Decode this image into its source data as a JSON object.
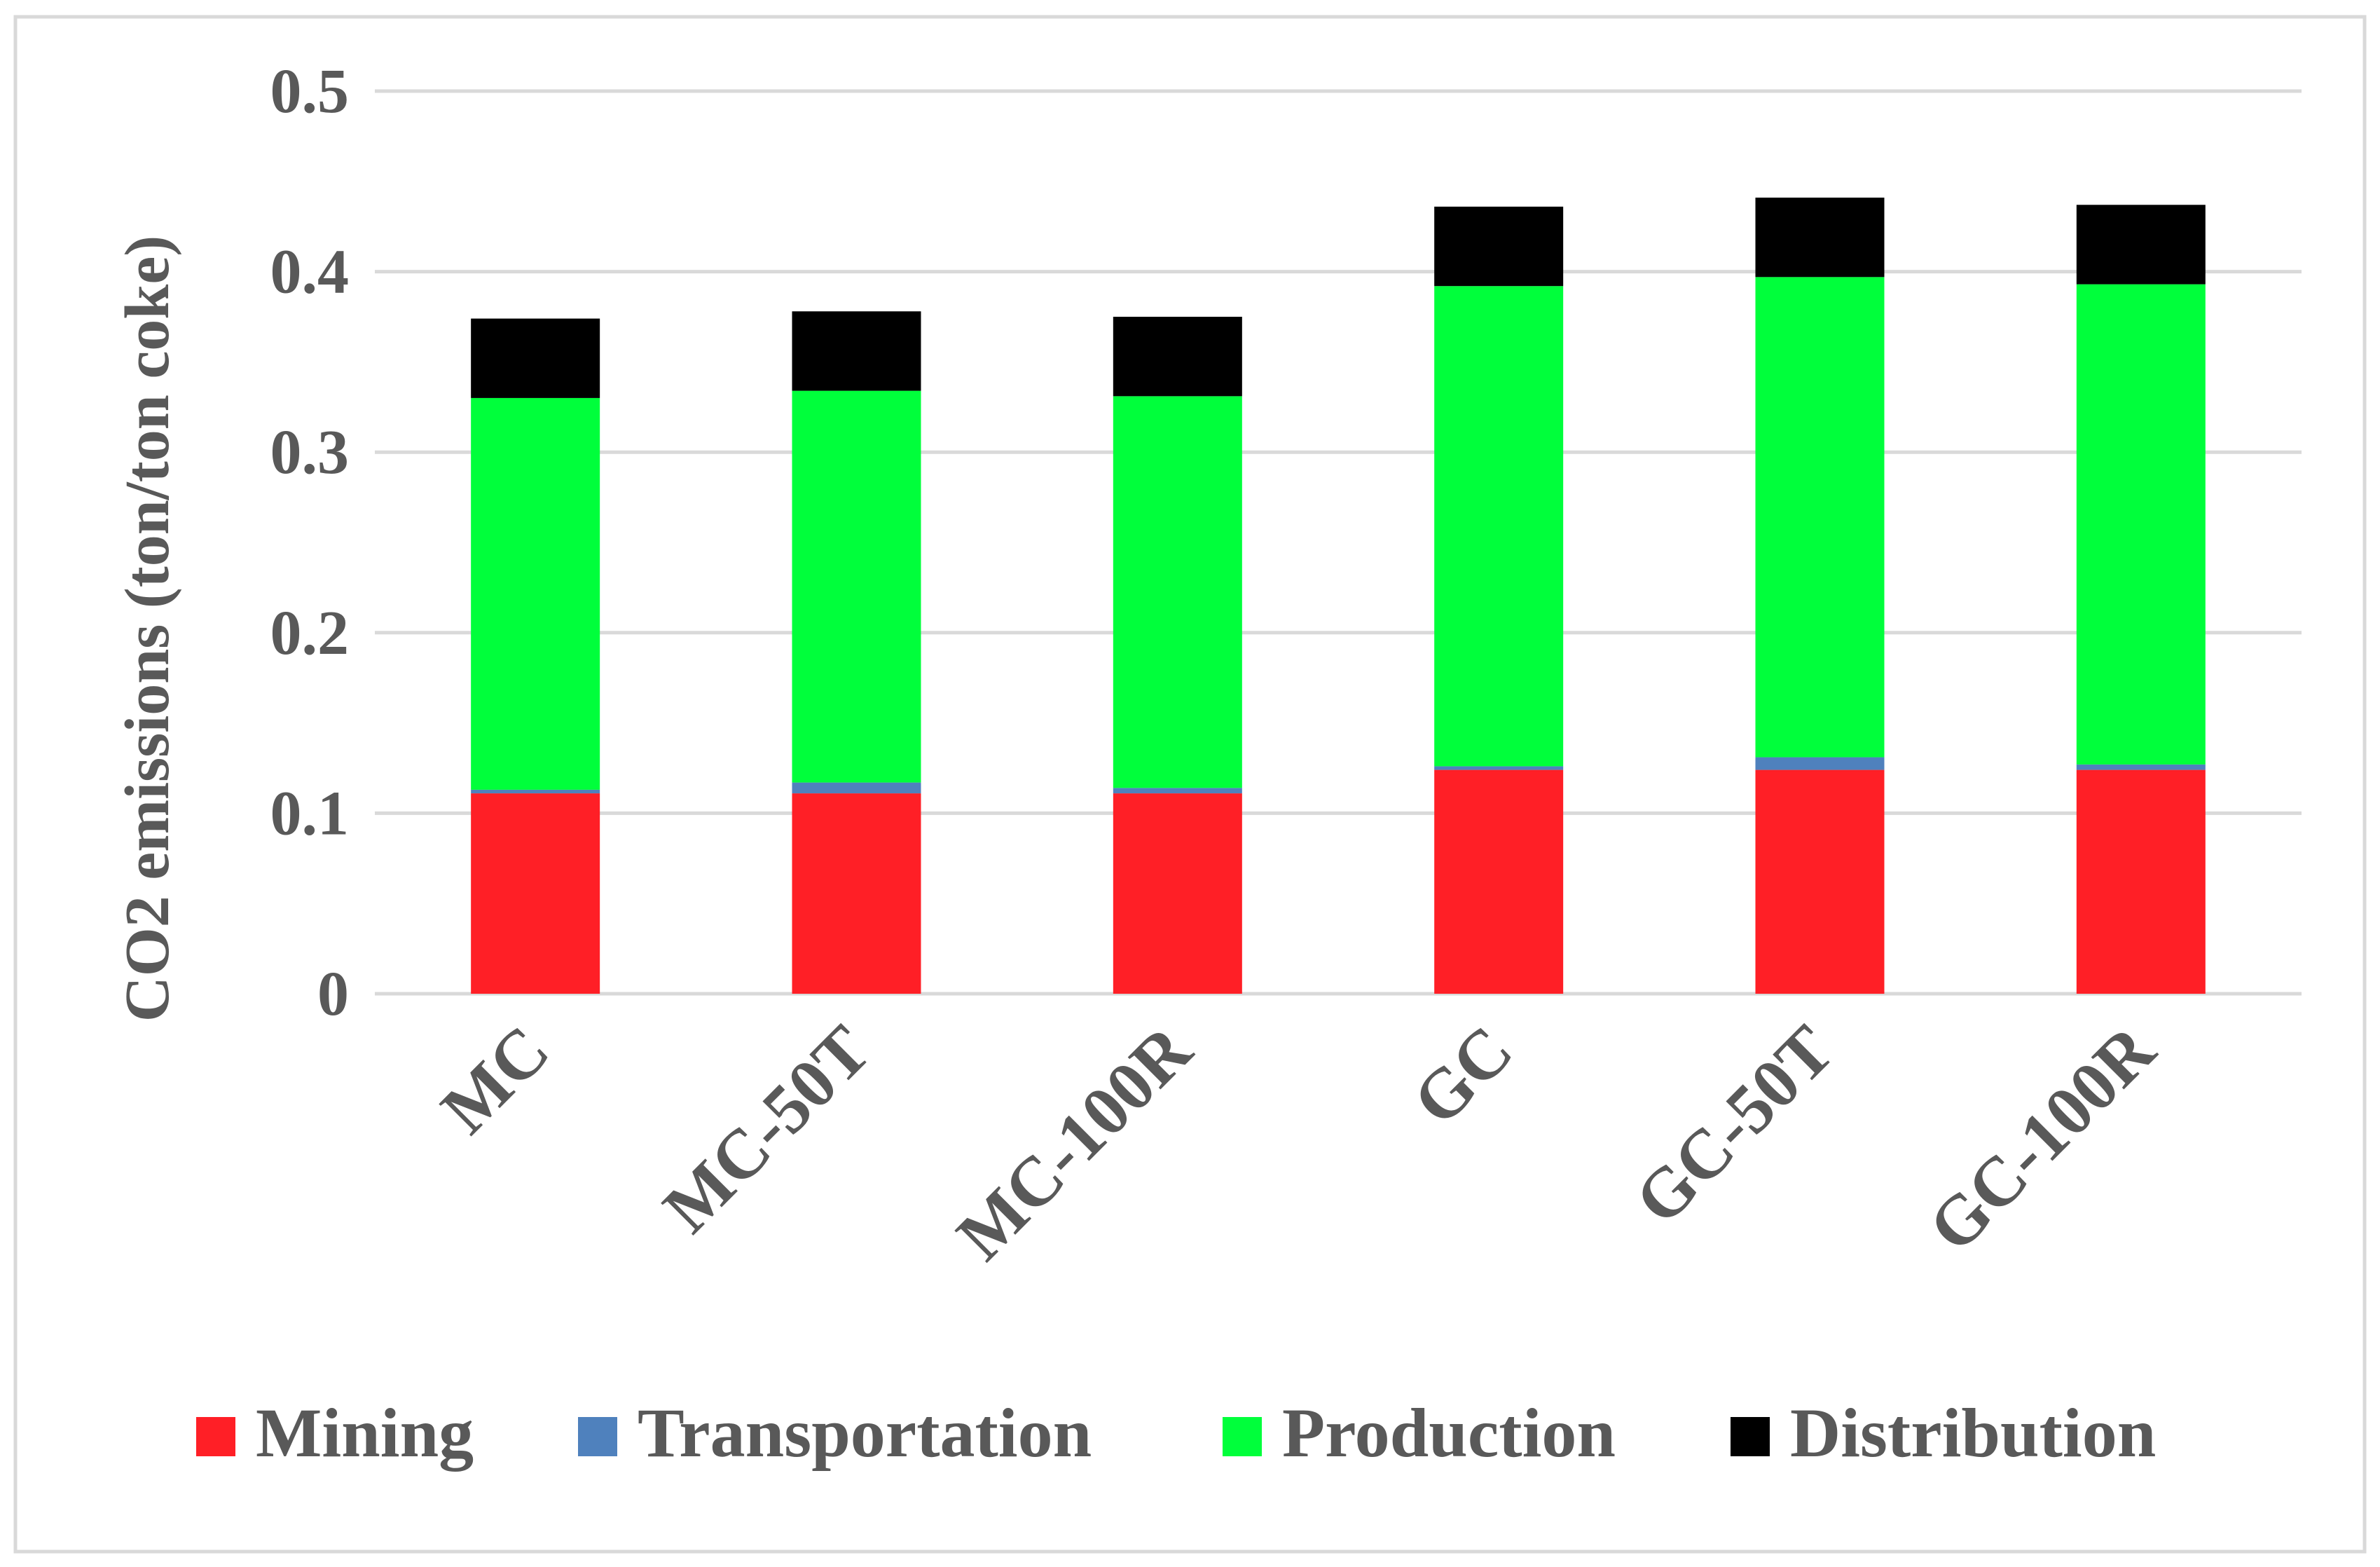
{
  "chart_data": {
    "type": "bar",
    "stacked": true,
    "title": "",
    "xlabel": "",
    "ylabel": "CO2 emissions (ton/ton coke)",
    "ylim": [
      0,
      0.5
    ],
    "yticks": [
      0,
      0.1,
      0.2,
      0.3,
      0.4,
      0.5
    ],
    "ytick_labels": [
      "0",
      "0.1",
      "0.2",
      "0.3",
      "0.4",
      "0.5"
    ],
    "grid": true,
    "legend_position": "bottom",
    "categories": [
      "MC",
      "MC-50T",
      "MC-100R",
      "GC",
      "GC-50T",
      "GC-100R"
    ],
    "series": [
      {
        "name": "Mining",
        "color": "#ff1f26",
        "values": [
          0.111,
          0.111,
          0.111,
          0.124,
          0.124,
          0.124
        ]
      },
      {
        "name": "Transportation",
        "color": "#4f81bd",
        "values": [
          0.002,
          0.006,
          0.003,
          0.002,
          0.007,
          0.003
        ]
      },
      {
        "name": "Production",
        "color": "#00ff3b",
        "values": [
          0.217,
          0.217,
          0.217,
          0.266,
          0.266,
          0.266
        ]
      },
      {
        "name": "Distribution",
        "color": "#000000",
        "values": [
          0.044,
          0.044,
          0.044,
          0.044,
          0.044,
          0.044
        ]
      }
    ]
  }
}
